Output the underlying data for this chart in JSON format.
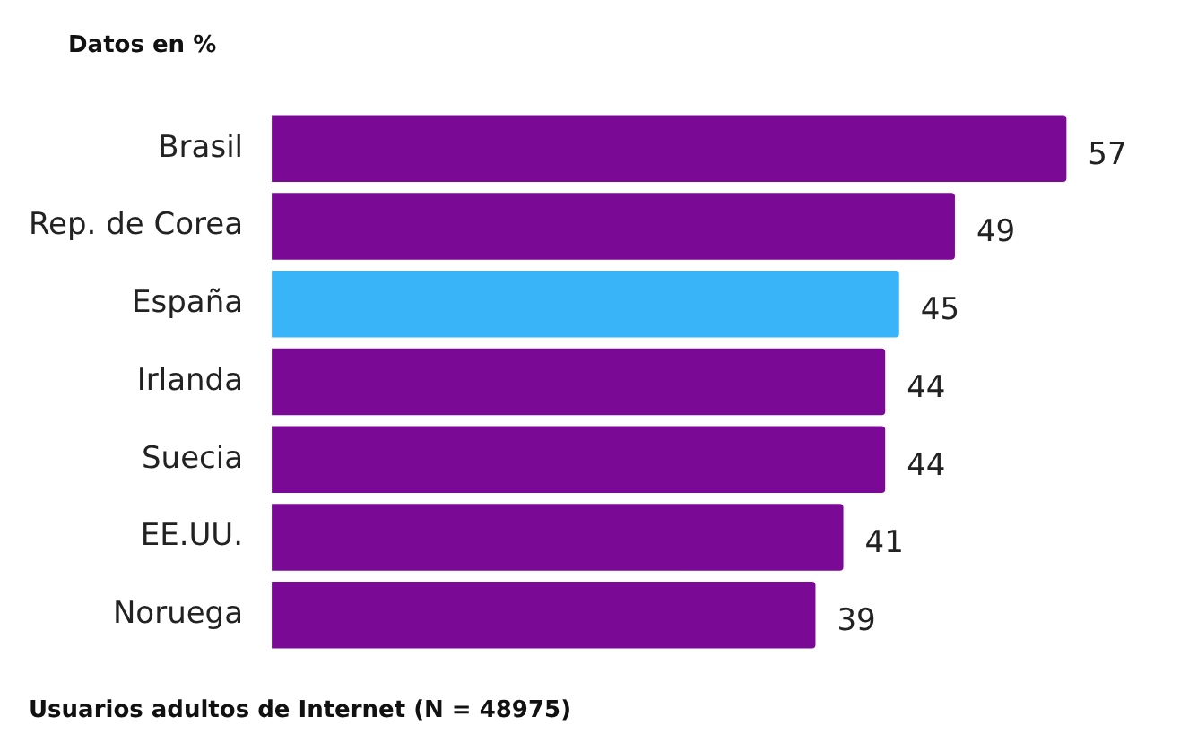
{
  "chart_data": {
    "type": "bar",
    "orientation": "horizontal",
    "title": "Datos en %",
    "categories": [
      "Brasil",
      "Rep. de Corea",
      "España",
      "Irlanda",
      "Suecia",
      "EE.UU.",
      "Noruega"
    ],
    "values": [
      57,
      49,
      45,
      44,
      44,
      41,
      39
    ],
    "colors": [
      "#7a0a96",
      "#7a0a96",
      "#3ab4f8",
      "#7a0a96",
      "#7a0a96",
      "#7a0a96",
      "#7a0a96"
    ],
    "data_labels": true,
    "grid": false,
    "legend": false,
    "tick_labels": "y",
    "annotations": [
      "Usuarios adultos de Internet (N = 48975)"
    ]
  }
}
